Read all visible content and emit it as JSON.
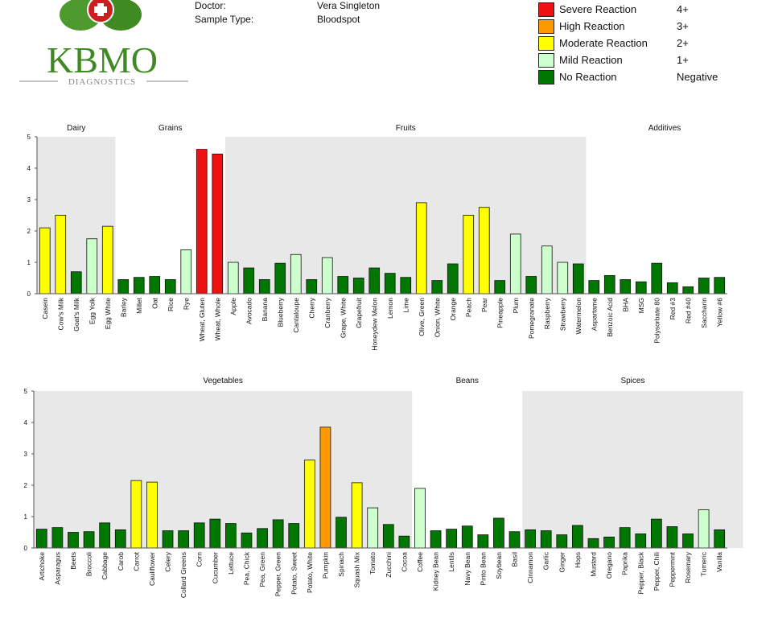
{
  "header": {
    "doctor_label": "Doctor:",
    "doctor_value": "Vera Singleton",
    "sample_label": "Sample Type:",
    "sample_value": "Bloodspot"
  },
  "logo": {
    "name": "KBMO",
    "sub": "DIAGNOSTICS"
  },
  "legend": [
    {
      "label": "Severe Reaction",
      "grade": "4+",
      "color": "#ee1111"
    },
    {
      "label": "High Reaction",
      "grade": "3+",
      "color": "#ff9900"
    },
    {
      "label": "Moderate Reaction",
      "grade": "2+",
      "color": "#ffff00"
    },
    {
      "label": "Mild Reaction",
      "grade": "1+",
      "color": "#ccffcc"
    },
    {
      "label": "No Reaction",
      "grade": "Negative",
      "color": "#007700"
    }
  ],
  "chart_data": [
    {
      "type": "bar",
      "ylim": [
        0,
        5
      ],
      "yticks": [
        "0",
        "1",
        "2",
        "3",
        "4",
        "5"
      ],
      "groups": [
        {
          "name": "Dairy",
          "start": 0,
          "end": 4,
          "shaded": true
        },
        {
          "name": "Grains",
          "start": 5,
          "end": 11,
          "shaded": false
        },
        {
          "name": "Fruits",
          "start": 12,
          "end": 34,
          "shaded": true
        },
        {
          "name": "Additives",
          "start": 35,
          "end": 44,
          "shaded": false
        }
      ],
      "categories": [
        "Casein",
        "Cow's Milk",
        "Goat's Milk",
        "Egg Yolk",
        "Egg White",
        "Barley",
        "Millet",
        "Oat",
        "Rice",
        "Rye",
        "Wheat, Gluten",
        "Wheat, Whole",
        "Apple",
        "Avocado",
        "Banana",
        "Blueberry",
        "Cantaloupe",
        "Cherry",
        "Cranberry",
        "Grape, White",
        "Grapefruit",
        "Honeydew Melon",
        "Lemon",
        "Lime",
        "Olive, Green",
        "Onion, White",
        "Orange",
        "Peach",
        "Pear",
        "Pineapple",
        "Plum",
        "Pomegranate",
        "Raspberry",
        "Strawberry",
        "Watermelon",
        "Aspartame",
        "Benzoic Acid",
        "BHA",
        "MSG",
        "Polysorbate 80",
        "Red #3",
        "Red #40",
        "Saccharin",
        "Yellow #6"
      ],
      "values": [
        2.1,
        2.5,
        0.7,
        1.75,
        2.15,
        0.45,
        0.52,
        0.55,
        0.45,
        1.4,
        4.6,
        4.45,
        1.0,
        0.82,
        0.45,
        0.97,
        1.25,
        0.45,
        1.15,
        0.55,
        0.5,
        0.82,
        0.65,
        0.52,
        2.9,
        0.42,
        0.95,
        2.5,
        2.75,
        0.42,
        1.9,
        0.55,
        1.52,
        1.0,
        0.95,
        0.42,
        0.58,
        0.45,
        0.38,
        0.97,
        0.35,
        0.22,
        0.5,
        0.52
      ]
    },
    {
      "type": "bar",
      "ylim": [
        0,
        5
      ],
      "yticks": [
        "0",
        "1",
        "2",
        "3",
        "4",
        "5"
      ],
      "groups": [
        {
          "name": "Vegetables",
          "start": 0,
          "end": 23,
          "shaded": true
        },
        {
          "name": "Beans",
          "start": 24,
          "end": 30,
          "shaded": false
        },
        {
          "name": "Spices",
          "start": 31,
          "end": 44,
          "shaded": true
        }
      ],
      "categories": [
        "Artichoke",
        "Asparagus",
        "Beets",
        "Broccoli",
        "Cabbage",
        "Carob",
        "Carrot",
        "Cauliflower",
        "Celery",
        "Collard Greens",
        "Corn",
        "Cucumber",
        "Lettuce",
        "Pea, Chick",
        "Pea, Green",
        "Pepper, Green",
        "Potato, Sweet",
        "Potato, White",
        "Pumpkin",
        "Spinach",
        "Squash Mix",
        "Tomato",
        "Zucchini",
        "Cocoa",
        "Coffee",
        "Kidney Bean",
        "Lentils",
        "Navy Bean",
        "Pinto Bean",
        "Soybean",
        "Basil",
        "Cinnamon",
        "Garlic",
        "Ginger",
        "Hops",
        "Mustard",
        "Oregano",
        "Paprika",
        "Pepper, Black",
        "Pepper, Chili",
        "Peppermint",
        "Rosemary",
        "Tumeric",
        "Vanilla"
      ],
      "values": [
        0.6,
        0.65,
        0.5,
        0.52,
        0.8,
        0.58,
        2.15,
        2.1,
        0.55,
        0.55,
        0.8,
        0.92,
        0.78,
        0.48,
        0.62,
        0.9,
        0.78,
        2.8,
        3.85,
        0.98,
        2.08,
        1.28,
        0.75,
        0.38,
        1.9,
        0.55,
        0.6,
        0.7,
        0.42,
        0.95,
        0.52,
        0.58,
        0.55,
        0.42,
        0.72,
        0.3,
        0.35,
        0.65,
        0.45,
        0.92,
        0.68,
        0.45,
        1.22,
        0.58
      ]
    }
  ]
}
